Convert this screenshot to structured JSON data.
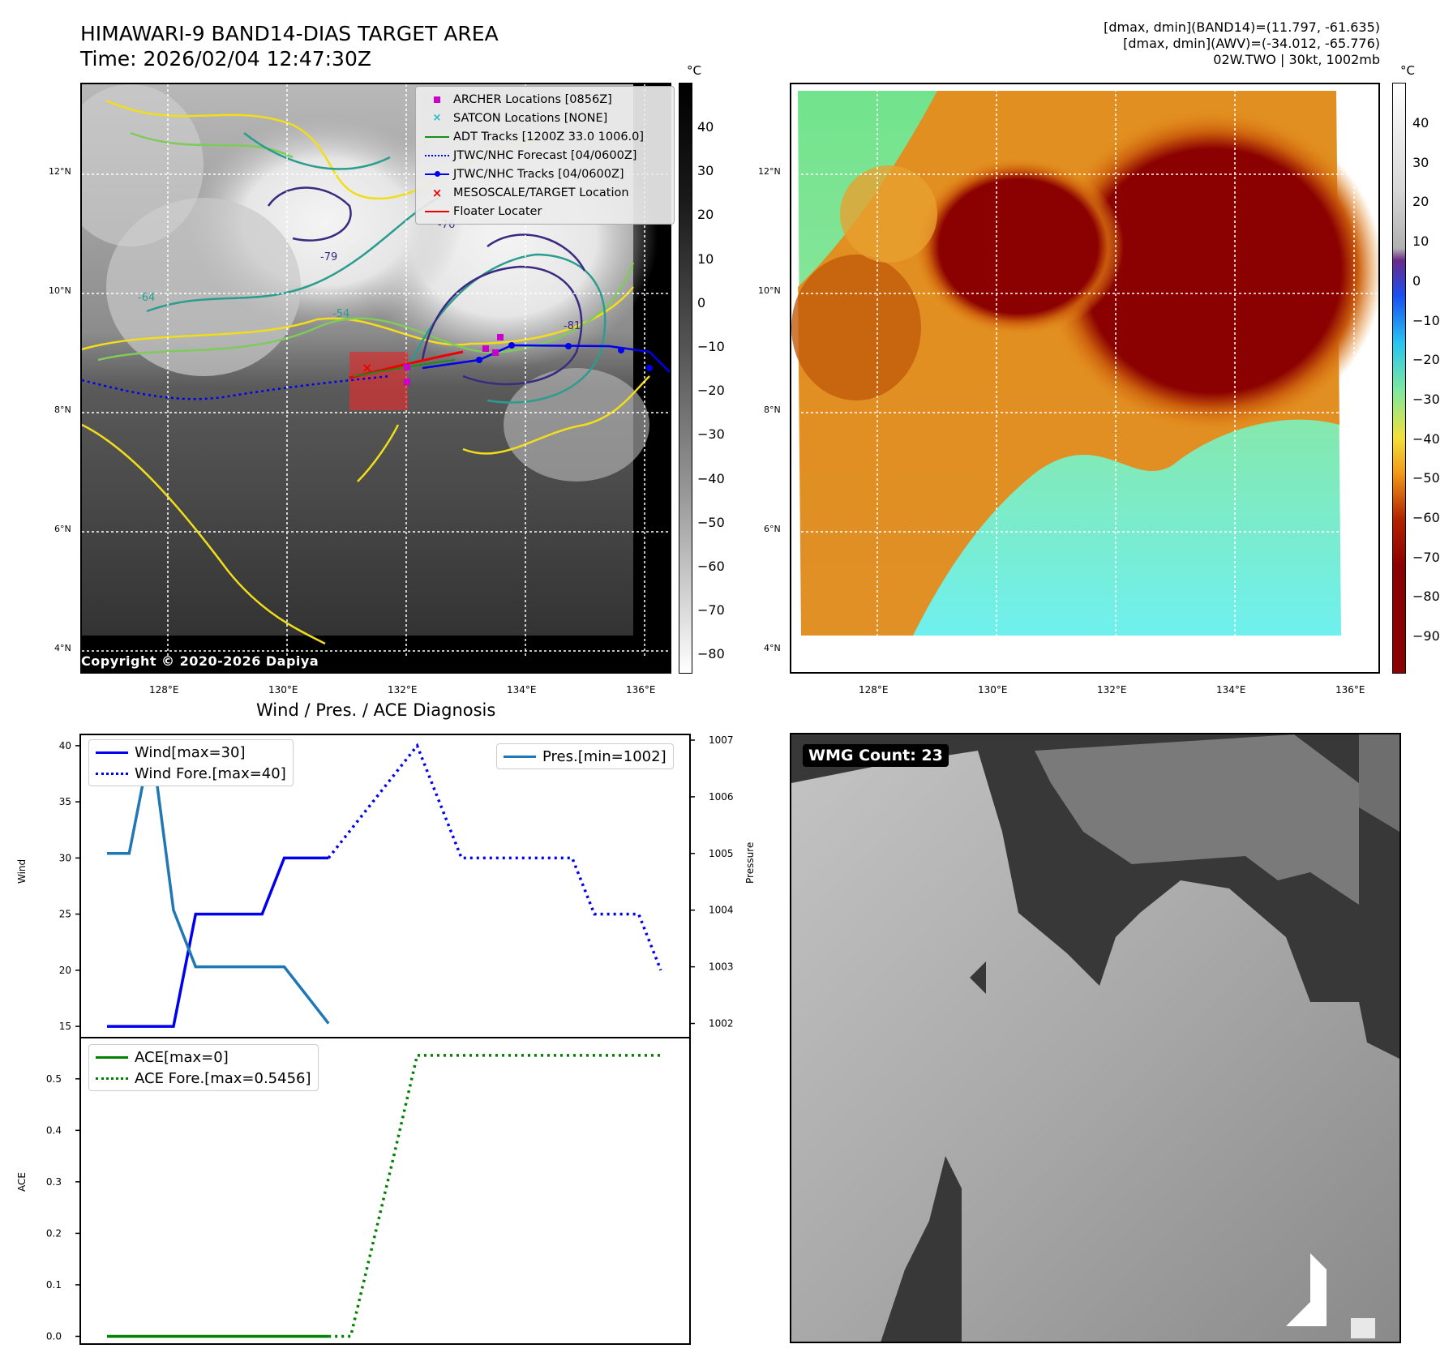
{
  "header": {
    "title_line1": "HIMAWARI-9 BAND14-DIAS TARGET AREA",
    "title_line2": "Time: 2026/02/04 12:47:30Z",
    "info_line1": "[dmax, dmin](BAND14)=(11.797, -61.635)",
    "info_line2": "[dmax, dmin](AWV)=(-34.012, -65.776)",
    "info_line3": "02W.TWO | 30kt, 1002mb"
  },
  "map": {
    "lat_labels": [
      "12°N",
      "10°N",
      "8°N",
      "6°N",
      "4°N"
    ],
    "lon_labels": [
      "128°E",
      "130°E",
      "132°E",
      "134°E",
      "136°E"
    ],
    "copyright": "Copyright © 2020-2026 Dapiya",
    "contour_labels": [
      "-64",
      "-54",
      "-81",
      "-76",
      "-79"
    ]
  },
  "legend": {
    "items": [
      {
        "label": "ARCHER Locations [0856Z]",
        "color": "#cc00cc"
      },
      {
        "label": "SATCON Locations [NONE]",
        "color": "#17bebe"
      },
      {
        "label": "ADT Tracks [1200Z 33.0 1006.0]",
        "color": "#1a8c1a"
      },
      {
        "label": "JTWC/NHC Forecast [04/0600Z]",
        "color": "#0000ee"
      },
      {
        "label": "JTWC/NHC Tracks [04/0600Z]",
        "color": "#0000ee"
      },
      {
        "label": "MESOSCALE/TARGET Location",
        "color": "#ee0000"
      },
      {
        "label": "Floater Locater",
        "color": "#ee0000"
      }
    ]
  },
  "colorbar1": {
    "unit": "°C",
    "ticks": [
      "40",
      "30",
      "20",
      "10",
      "0",
      "−10",
      "−20",
      "−30",
      "−40",
      "−50",
      "−60",
      "−70",
      "−80"
    ]
  },
  "colorbar2": {
    "unit": "°C",
    "ticks": [
      "40",
      "30",
      "20",
      "10",
      "0",
      "−10",
      "−20",
      "−30",
      "−40",
      "−50",
      "−60",
      "−70",
      "−80",
      "−90"
    ]
  },
  "wmg": {
    "label": "WMG Count: 23"
  },
  "chart_data": [
    {
      "type": "line",
      "title": "Wind / Pres. / ACE Diagnosis",
      "xlabel": "",
      "ylabel": "Wind",
      "ylabel_right": "Pressure",
      "ylim": [
        14,
        41
      ],
      "ylim_right": [
        1001.75,
        1007.1
      ],
      "yticks": [
        15,
        20,
        25,
        30,
        35,
        40
      ],
      "yticks_right": [
        1002,
        1003,
        1004,
        1005,
        1006,
        1007
      ],
      "x": [
        0,
        1,
        2,
        3,
        4,
        5,
        6,
        7,
        8,
        9,
        10,
        11,
        12,
        13,
        14,
        15,
        16,
        17,
        18,
        19,
        20,
        21,
        22,
        23,
        24,
        25
      ],
      "series": [
        {
          "name": "Wind[max=30]",
          "axis": "left",
          "style": "solid",
          "color": "#0000ee",
          "x": [
            0,
            1,
            2,
            3,
            4,
            5,
            6,
            7,
            8,
            9,
            10
          ],
          "values": [
            15,
            15,
            15,
            15,
            25,
            25,
            25,
            25,
            30,
            30,
            30
          ]
        },
        {
          "name": "Wind Fore.[max=40]",
          "axis": "left",
          "style": "dotted",
          "color": "#0000ee",
          "x": [
            10,
            11,
            12,
            13,
            14,
            15,
            16,
            17,
            18,
            19,
            20,
            21,
            22,
            23,
            24,
            25
          ],
          "values": [
            30,
            32.5,
            35,
            37.5,
            40,
            35,
            30,
            30,
            30,
            30,
            30,
            30,
            25,
            25,
            25,
            20
          ]
        },
        {
          "name": "Pres.[min=1002]",
          "axis": "right",
          "style": "solid",
          "color": "#1f77b4",
          "x": [
            0,
            1,
            2,
            3,
            4,
            5,
            6,
            7,
            8,
            9,
            10
          ],
          "values": [
            1005,
            1005,
            1007,
            1004,
            1003,
            1003,
            1003,
            1003,
            1003,
            1002.5,
            1002
          ]
        }
      ]
    },
    {
      "type": "line",
      "ylabel": "ACE",
      "ylim": [
        -0.015,
        0.58
      ],
      "yticks": [
        0.0,
        0.1,
        0.2,
        0.3,
        0.4,
        0.5
      ],
      "ytick_labels": [
        "0.0",
        "0.1",
        "0.2",
        "0.3",
        "0.4",
        "0.5"
      ],
      "series": [
        {
          "name": "ACE[max=0]",
          "style": "solid",
          "color": "#008000",
          "x": [
            0,
            1,
            2,
            3,
            4,
            5,
            6,
            7,
            8,
            9,
            10
          ],
          "values": [
            0,
            0,
            0,
            0,
            0,
            0,
            0,
            0,
            0,
            0,
            0
          ]
        },
        {
          "name": "ACE Fore.[max=0.5456]",
          "style": "dotted",
          "color": "#008000",
          "x": [
            10,
            11,
            12,
            13,
            14,
            15,
            16,
            17,
            18,
            19,
            20,
            21,
            22,
            23,
            24,
            25
          ],
          "values": [
            0,
            0,
            0.18,
            0.36,
            0.5456,
            0.5456,
            0.5456,
            0.5456,
            0.5456,
            0.5456,
            0.5456,
            0.5456,
            0.5456,
            0.5456,
            0.5456,
            0.5456
          ]
        }
      ]
    }
  ]
}
